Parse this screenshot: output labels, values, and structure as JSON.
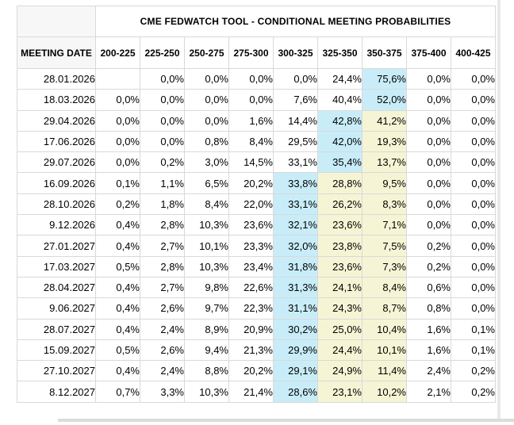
{
  "title": "CME FEDWATCH TOOL - CONDITIONAL MEETING PROBABILITIES",
  "meeting_date_header": "MEETING DATE",
  "rate_headers": [
    "200-225",
    "225-250",
    "250-275",
    "275-300",
    "300-325",
    "325-350",
    "350-375",
    "375-400",
    "400-425"
  ],
  "colors": {
    "highlight_primary": "#c8edf8",
    "highlight_secondary": "#f5f5d5",
    "border": "#d9d9d9",
    "header_bg": "#f7f7f7"
  },
  "rows": [
    {
      "date": "28.01.2026",
      "values": [
        "",
        "0,0%",
        "0,0%",
        "0,0%",
        "0,0%",
        "24,4%",
        "75,6%",
        "0,0%",
        "0,0%"
      ],
      "marks": [
        "",
        "",
        "",
        "",
        "",
        "",
        "c",
        "",
        ""
      ]
    },
    {
      "date": "18.03.2026",
      "values": [
        "0,0%",
        "0,0%",
        "0,0%",
        "0,0%",
        "7,6%",
        "40,4%",
        "52,0%",
        "0,0%",
        "0,0%"
      ],
      "marks": [
        "",
        "",
        "",
        "",
        "",
        "",
        "c",
        "",
        ""
      ]
    },
    {
      "date": "29.04.2026",
      "values": [
        "0,0%",
        "0,0%",
        "0,0%",
        "1,6%",
        "14,4%",
        "42,8%",
        "41,2%",
        "0,0%",
        "0,0%"
      ],
      "marks": [
        "",
        "",
        "",
        "",
        "",
        "c",
        "y",
        "",
        ""
      ]
    },
    {
      "date": "17.06.2026",
      "values": [
        "0,0%",
        "0,0%",
        "0,8%",
        "8,4%",
        "29,5%",
        "42,0%",
        "19,3%",
        "0,0%",
        "0,0%"
      ],
      "marks": [
        "",
        "",
        "",
        "",
        "",
        "c",
        "y",
        "",
        ""
      ]
    },
    {
      "date": "29.07.2026",
      "values": [
        "0,0%",
        "0,2%",
        "3,0%",
        "14,5%",
        "33,1%",
        "35,4%",
        "13,7%",
        "0,0%",
        "0,0%"
      ],
      "marks": [
        "",
        "",
        "",
        "",
        "",
        "c",
        "y",
        "",
        ""
      ]
    },
    {
      "date": "16.09.2026",
      "values": [
        "0,1%",
        "1,1%",
        "6,5%",
        "20,2%",
        "33,8%",
        "28,8%",
        "9,5%",
        "0,0%",
        "0,0%"
      ],
      "marks": [
        "",
        "",
        "",
        "",
        "c",
        "y",
        "y",
        "",
        ""
      ]
    },
    {
      "date": "28.10.2026",
      "values": [
        "0,2%",
        "1,8%",
        "8,4%",
        "22,0%",
        "33,1%",
        "26,2%",
        "8,3%",
        "0,0%",
        "0,0%"
      ],
      "marks": [
        "",
        "",
        "",
        "",
        "c",
        "y",
        "y",
        "",
        ""
      ]
    },
    {
      "date": "9.12.2026",
      "values": [
        "0,4%",
        "2,8%",
        "10,3%",
        "23,6%",
        "32,1%",
        "23,6%",
        "7,1%",
        "0,0%",
        "0,0%"
      ],
      "marks": [
        "",
        "",
        "",
        "",
        "c",
        "y",
        "y",
        "",
        ""
      ]
    },
    {
      "date": "27.01.2027",
      "values": [
        "0,4%",
        "2,7%",
        "10,1%",
        "23,3%",
        "32,0%",
        "23,8%",
        "7,5%",
        "0,2%",
        "0,0%"
      ],
      "marks": [
        "",
        "",
        "",
        "",
        "c",
        "y",
        "y",
        "",
        ""
      ]
    },
    {
      "date": "17.03.2027",
      "values": [
        "0,5%",
        "2,8%",
        "10,3%",
        "23,4%",
        "31,8%",
        "23,6%",
        "7,3%",
        "0,2%",
        "0,0%"
      ],
      "marks": [
        "",
        "",
        "",
        "",
        "c",
        "y",
        "y",
        "",
        ""
      ]
    },
    {
      "date": "28.04.2027",
      "values": [
        "0,4%",
        "2,7%",
        "9,8%",
        "22,6%",
        "31,3%",
        "24,1%",
        "8,4%",
        "0,6%",
        "0,0%"
      ],
      "marks": [
        "",
        "",
        "",
        "",
        "c",
        "y",
        "y",
        "",
        ""
      ]
    },
    {
      "date": "9.06.2027",
      "values": [
        "0,4%",
        "2,6%",
        "9,7%",
        "22,3%",
        "31,1%",
        "24,3%",
        "8,7%",
        "0,8%",
        "0,0%"
      ],
      "marks": [
        "",
        "",
        "",
        "",
        "c",
        "y",
        "y",
        "",
        ""
      ]
    },
    {
      "date": "28.07.2027",
      "values": [
        "0,4%",
        "2,4%",
        "8,9%",
        "20,9%",
        "30,2%",
        "25,0%",
        "10,4%",
        "1,6%",
        "0,1%"
      ],
      "marks": [
        "",
        "",
        "",
        "",
        "c",
        "y",
        "y",
        "",
        ""
      ]
    },
    {
      "date": "15.09.2027",
      "values": [
        "0,5%",
        "2,6%",
        "9,4%",
        "21,3%",
        "29,9%",
        "24,4%",
        "10,1%",
        "1,6%",
        "0,1%"
      ],
      "marks": [
        "",
        "",
        "",
        "",
        "c",
        "y",
        "y",
        "",
        ""
      ]
    },
    {
      "date": "27.10.2027",
      "values": [
        "0,4%",
        "2,4%",
        "8,8%",
        "20,2%",
        "29,1%",
        "24,9%",
        "11,4%",
        "2,4%",
        "0,2%"
      ],
      "marks": [
        "",
        "",
        "",
        "",
        "c",
        "y",
        "y",
        "",
        ""
      ]
    },
    {
      "date": "8.12.2027",
      "values": [
        "0,7%",
        "3,3%",
        "10,3%",
        "21,4%",
        "28,6%",
        "23,1%",
        "10,2%",
        "2,1%",
        "0,2%"
      ],
      "marks": [
        "",
        "",
        "",
        "",
        "c",
        "y",
        "y",
        "",
        ""
      ]
    }
  ]
}
